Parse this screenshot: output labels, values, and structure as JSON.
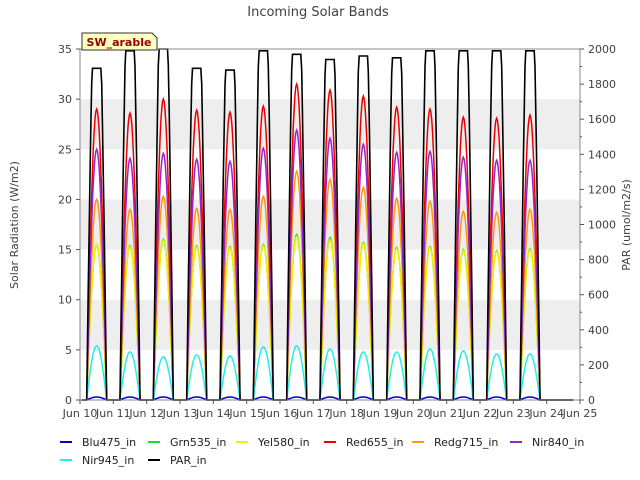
{
  "chart_data": {
    "type": "line",
    "title": "Incoming Solar Bands",
    "site_label": "SW_arable",
    "ylabel_left": "Solar Radiation (W/m2)",
    "ylabel_right": "PAR (umol/m2/s)",
    "xlabel": "",
    "ylim_left": [
      0,
      35
    ],
    "ylim_right": [
      0,
      2000
    ],
    "yticks_left": [
      0,
      5,
      10,
      15,
      20,
      25,
      30,
      35
    ],
    "yticks_right": [
      0,
      200,
      400,
      600,
      800,
      1000,
      1200,
      1400,
      1600,
      1800,
      2000
    ],
    "xlim_days": [
      10,
      25
    ],
    "x_tick_labels": [
      "Jun 10",
      "Jun 11",
      "Jun 12",
      "Jun 13",
      "Jun 14",
      "Jun 15",
      "Jun 16",
      "Jun 17",
      "Jun 18",
      "Jun 19",
      "Jun 20",
      "Jun 21",
      "Jun 22",
      "Jun 23",
      "Jun 24",
      "Jun 25"
    ],
    "grid": "horizontal bands",
    "legend_position": "bottom",
    "day_peak_x": [
      10.5,
      11.5,
      12.5,
      13.5,
      14.5,
      15.5,
      16.5,
      17.5,
      18.5,
      19.5,
      20.5,
      21.5,
      22.5,
      23.5
    ],
    "series": [
      {
        "name": "Blu475_in",
        "color": "#0000cc",
        "axis": "left",
        "peaks": [
          0.3,
          0.3,
          0.3,
          0.3,
          0.3,
          0.3,
          0.3,
          0.3,
          0.3,
          0.3,
          0.3,
          0.3,
          0.3,
          0.3
        ]
      },
      {
        "name": "Grn535_in",
        "color": "#22dd22",
        "axis": "left",
        "peaks": [
          15.5,
          15.4,
          16.0,
          15.4,
          15.3,
          15.5,
          16.5,
          16.2,
          15.7,
          15.2,
          15.3,
          15.0,
          14.9,
          15.1
        ]
      },
      {
        "name": "Yel580_in",
        "color": "#f0f000",
        "axis": "left",
        "peaks": [
          15.5,
          15.3,
          15.9,
          15.3,
          15.2,
          15.4,
          16.3,
          16.0,
          15.6,
          15.1,
          15.2,
          14.9,
          14.8,
          15.0
        ]
      },
      {
        "name": "Red655_in",
        "color": "#ee0000",
        "axis": "left",
        "peaks": [
          29.0,
          28.6,
          30.0,
          28.9,
          28.7,
          29.3,
          31.5,
          30.9,
          30.3,
          29.2,
          29.0,
          28.2,
          28.1,
          28.4
        ]
      },
      {
        "name": "Redg715_in",
        "color": "#ff9900",
        "axis": "left",
        "peaks": [
          20.0,
          19.0,
          20.3,
          19.1,
          19.0,
          20.3,
          22.8,
          22.0,
          21.2,
          20.1,
          19.8,
          18.8,
          18.7,
          19.0
        ]
      },
      {
        "name": "Nir840_in",
        "color": "#9922cc",
        "axis": "left",
        "peaks": [
          25.0,
          24.1,
          24.6,
          24.0,
          23.8,
          25.1,
          26.9,
          26.1,
          25.5,
          24.7,
          24.8,
          24.2,
          23.9,
          23.9
        ]
      },
      {
        "name": "Nir945_in",
        "color": "#22eeee",
        "axis": "left",
        "peaks": [
          5.4,
          4.8,
          4.3,
          4.5,
          4.4,
          5.3,
          5.4,
          5.1,
          4.8,
          4.8,
          5.1,
          4.9,
          4.6,
          4.6
        ]
      },
      {
        "name": "PAR_in",
        "color": "#000000",
        "axis": "right",
        "peaks": [
          1890,
          1990,
          2000,
          1890,
          1880,
          1990,
          1970,
          1940,
          1960,
          1950,
          1990,
          1990,
          1990,
          1990
        ]
      }
    ]
  }
}
